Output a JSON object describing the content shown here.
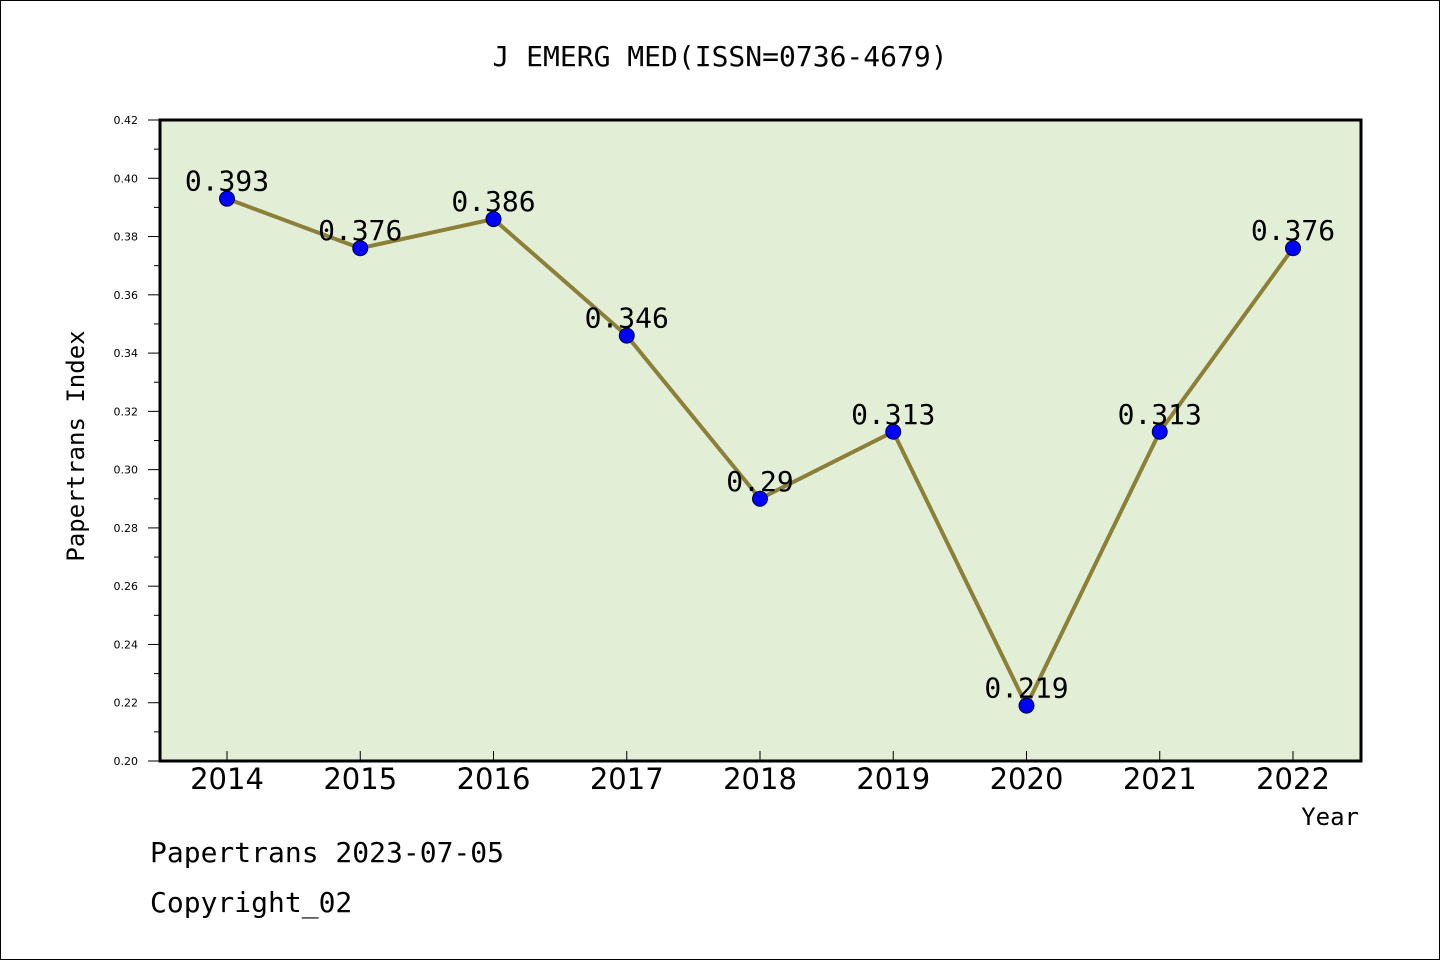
{
  "chart_data": {
    "type": "line",
    "title": "J EMERG MED(ISSN=0736-4679)",
    "xlabel": "Year",
    "ylabel": "Papertrans Index",
    "categories": [
      "2014",
      "2015",
      "2016",
      "2017",
      "2018",
      "2019",
      "2020",
      "2021",
      "2022"
    ],
    "series": [
      {
        "values": [
          0.393,
          0.376,
          0.386,
          0.346,
          0.29,
          0.313,
          0.219,
          0.313,
          0.376
        ],
        "labels": [
          "0.393",
          "0.376",
          "0.386",
          "0.346",
          "0.29",
          "0.313",
          "0.219",
          "0.313",
          "0.376"
        ]
      }
    ],
    "ylim": [
      0.2,
      0.42
    ],
    "yticks": [
      "0.20",
      "0.22",
      "0.24",
      "0.26",
      "0.28",
      "0.30",
      "0.32",
      "0.34",
      "0.36",
      "0.38",
      "0.40",
      "0.42"
    ],
    "grid": false,
    "colors": {
      "plot_bg": "#e2efd6",
      "line": "#8c7f38",
      "marker": "#0000ff"
    }
  },
  "footer": {
    "line1": "Papertrans 2023-07-05",
    "line2": "Copyright_02"
  }
}
